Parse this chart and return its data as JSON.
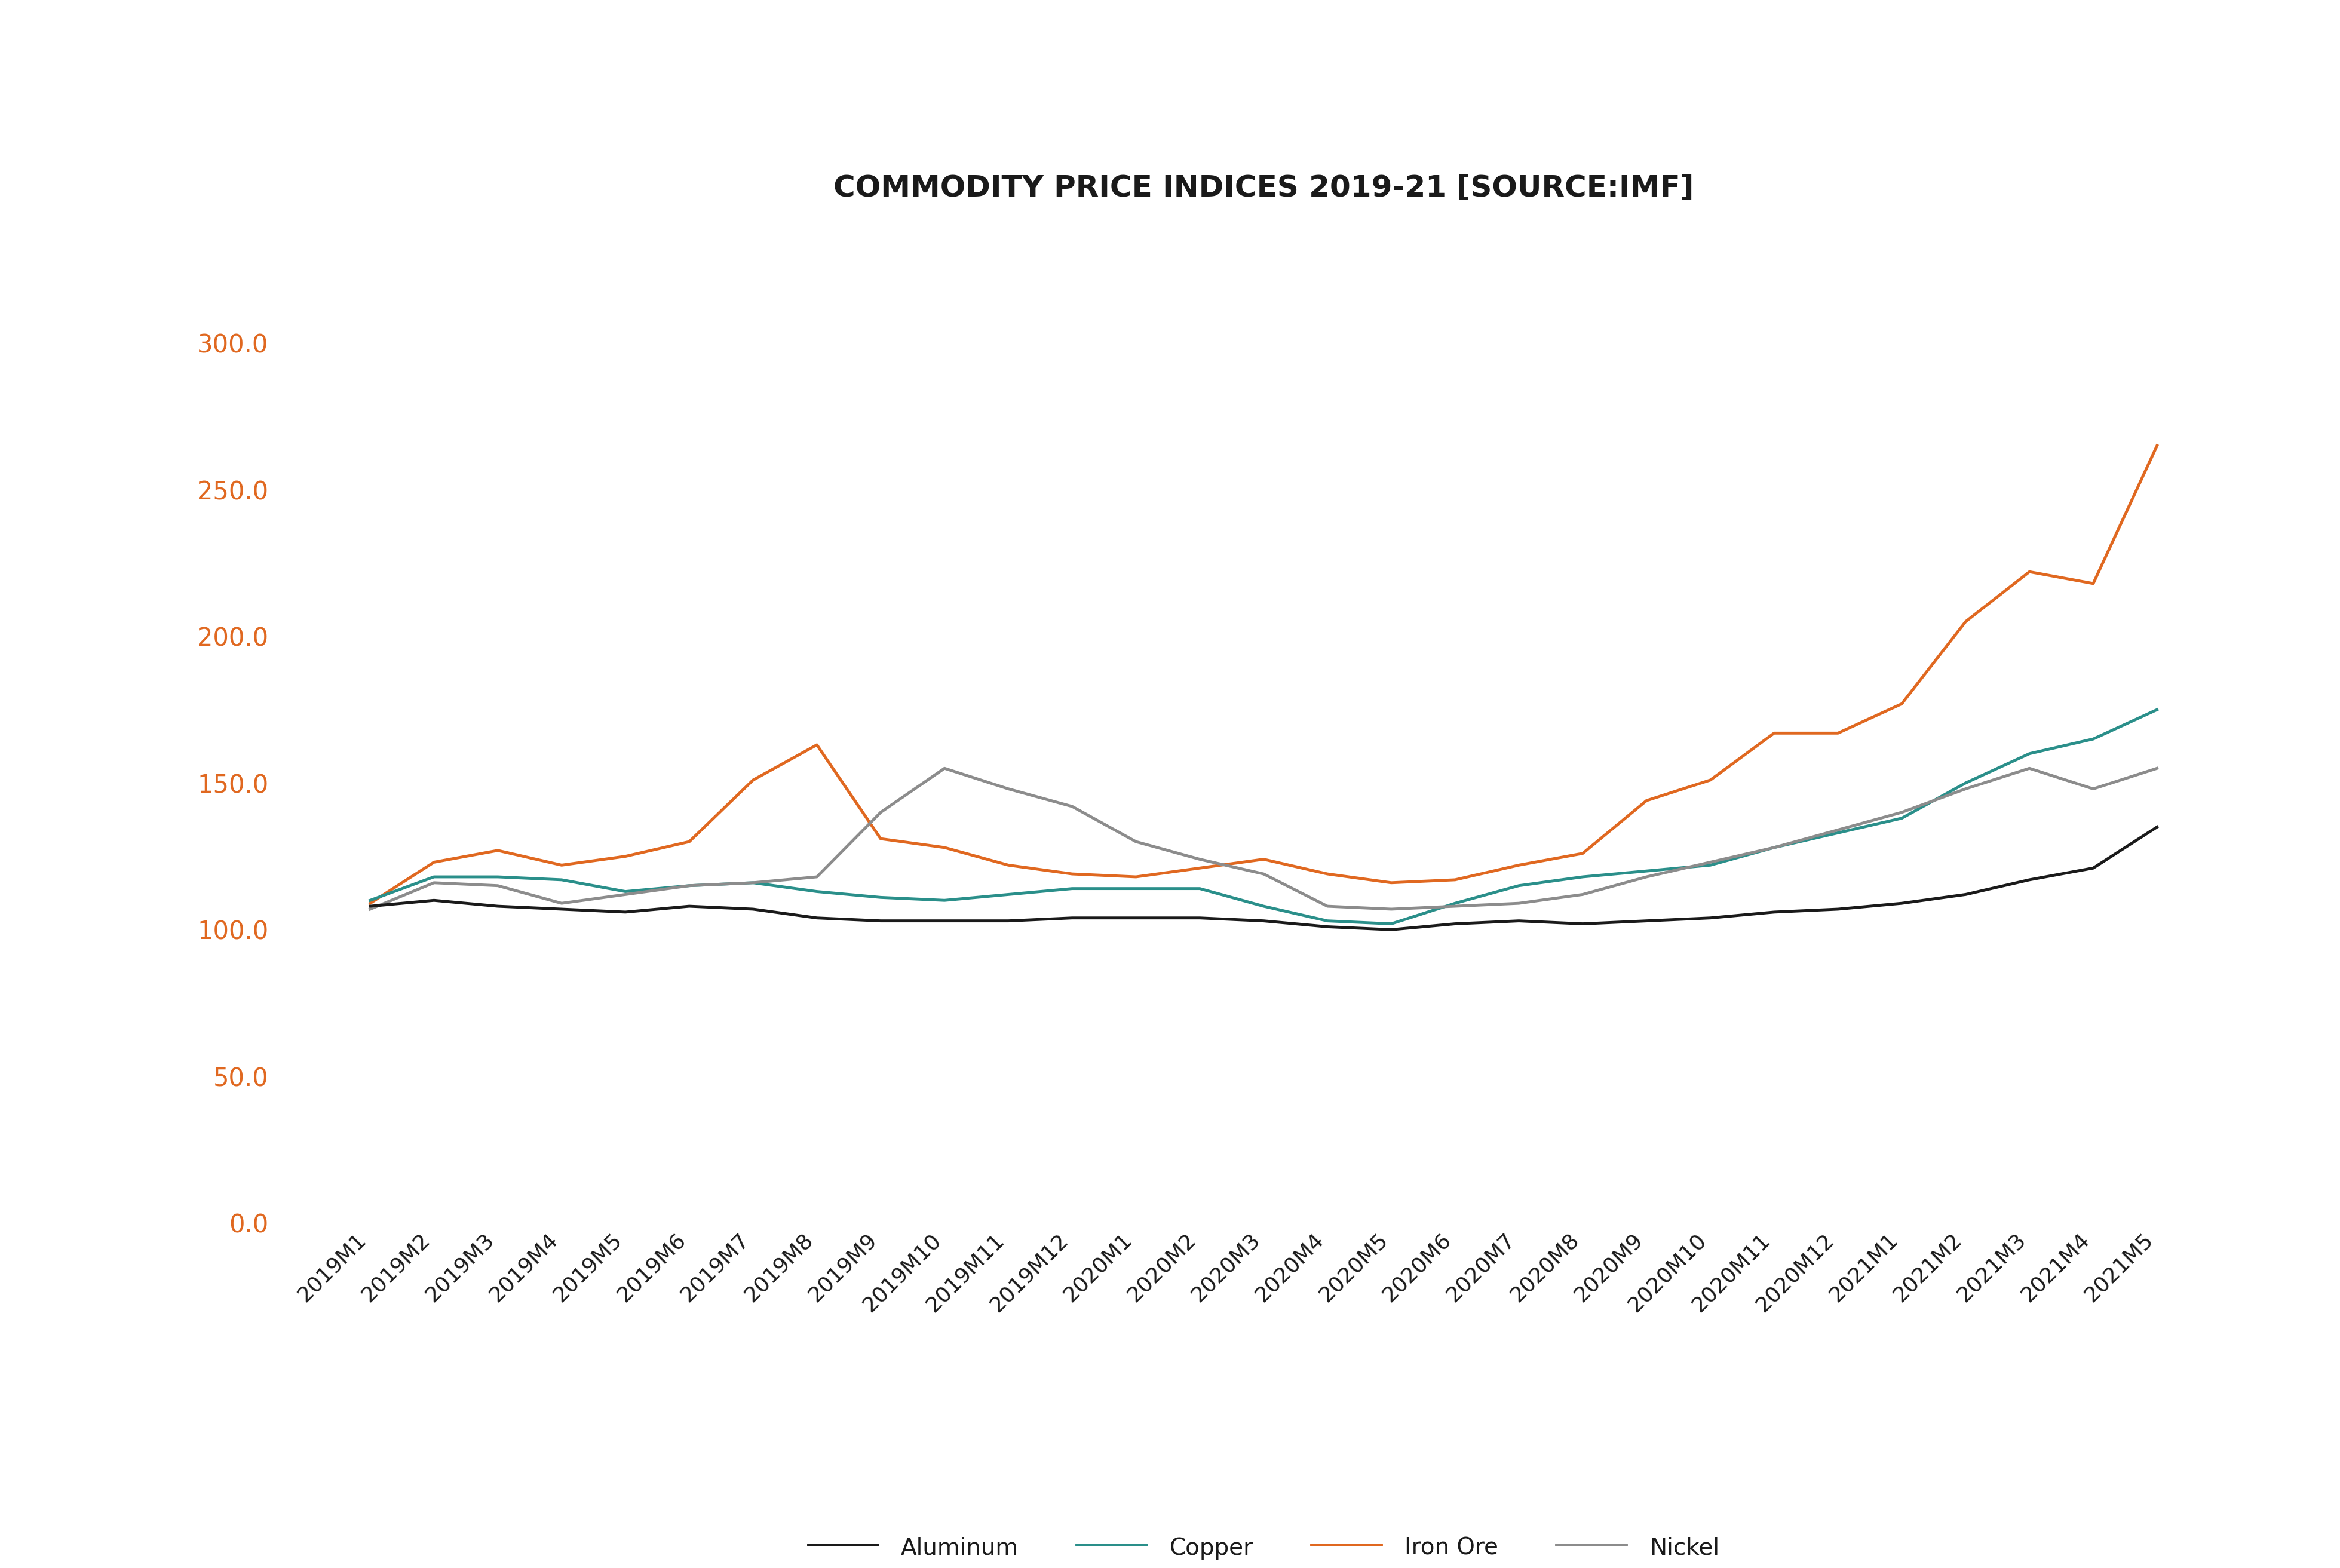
{
  "title": "COMMODITY PRICE INDICES 2019-21 [SOURCE:IMF]",
  "title_color": "#1a1a1a",
  "title_fontsize": 36,
  "background_color": "#ffffff",
  "categories": [
    "2019M1",
    "2019M2",
    "2019M3",
    "2019M4",
    "2019M5",
    "2019M6",
    "2019M7",
    "2019M8",
    "2019M9",
    "2019M10",
    "2019M11",
    "2019M12",
    "2020M1",
    "2020M2",
    "2020M3",
    "2020M4",
    "2020M5",
    "2020M6",
    "2020M7",
    "2020M8",
    "2020M9",
    "2020M10",
    "2020M11",
    "2020M12",
    "2021M1",
    "2021M2",
    "2021M3",
    "2021M4",
    "2021M5"
  ],
  "aluminum": [
    108,
    110,
    108,
    107,
    106,
    108,
    107,
    104,
    103,
    103,
    103,
    104,
    104,
    104,
    103,
    101,
    100,
    102,
    103,
    102,
    103,
    104,
    106,
    107,
    109,
    112,
    117,
    121,
    135
  ],
  "copper": [
    110,
    118,
    118,
    117,
    113,
    115,
    116,
    113,
    111,
    110,
    112,
    114,
    114,
    114,
    108,
    103,
    102,
    109,
    115,
    118,
    120,
    122,
    128,
    133,
    138,
    150,
    160,
    165,
    175
  ],
  "iron_ore": [
    109,
    123,
    127,
    122,
    125,
    130,
    151,
    163,
    131,
    128,
    122,
    119,
    118,
    121,
    124,
    119,
    116,
    117,
    122,
    126,
    144,
    151,
    167,
    167,
    177,
    205,
    222,
    218,
    265
  ],
  "nickel": [
    107,
    116,
    115,
    109,
    112,
    115,
    116,
    118,
    140,
    155,
    148,
    142,
    130,
    124,
    119,
    108,
    107,
    108,
    109,
    112,
    118,
    123,
    128,
    134,
    140,
    148,
    155,
    148,
    155
  ],
  "aluminum_color": "#1a1a1a",
  "copper_color": "#2a8f8a",
  "iron_ore_color": "#e06820",
  "nickel_color": "#8c8c8c",
  "line_width": 3.5,
  "ytick_color": "#e06820",
  "ytick_fontsize": 30,
  "xtick_fontsize": 26,
  "legend_fontsize": 28,
  "ylim": [
    0.0,
    310.0
  ],
  "yticks": [
    0.0,
    50.0,
    100.0,
    150.0,
    200.0,
    250.0,
    300.0
  ]
}
